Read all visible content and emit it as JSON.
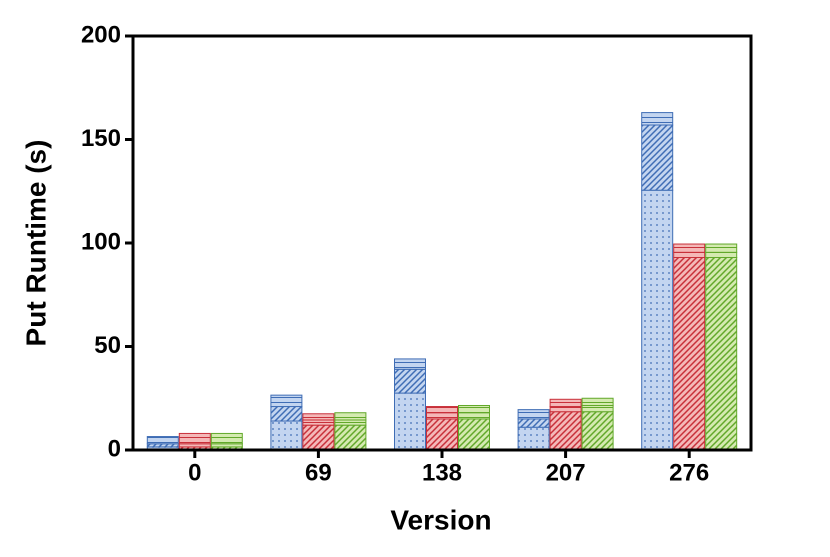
{
  "chart_data": {
    "type": "grouped-stacked-bar",
    "x_label": "Version",
    "y_label": "Put Runtime (s)",
    "categories": [
      "0",
      "69",
      "138",
      "207",
      "276"
    ],
    "ylim": [
      0,
      200
    ],
    "yticks": [
      0,
      50,
      100,
      150,
      200
    ],
    "groups": [
      {
        "color": "#c3d5f0",
        "edge_color": "#3f6db5",
        "segments": [
          {
            "pattern": "dots",
            "values": [
              1.5,
              14,
              27.5,
              11,
              125.5
            ]
          },
          {
            "pattern": "diagonal",
            "values": [
              1.5,
              7,
              11.5,
              4,
              31.5
            ]
          },
          {
            "pattern": "horizontal",
            "values": [
              3.5,
              5.5,
              5,
              4.5,
              6
            ]
          }
        ]
      },
      {
        "color": "#f4b8b8",
        "edge_color": "#c8303a",
        "segments": [
          {
            "pattern": "diagonal",
            "values": [
              1.5,
              12,
              15,
              18.5,
              93
            ]
          },
          {
            "pattern": "horizontal",
            "values": [
              1.5,
              2.5,
              3,
              2.5,
              2.5
            ]
          },
          {
            "pattern": "horizontal",
            "values": [
              5,
              3,
              3,
              3.5,
              4
            ]
          }
        ]
      },
      {
        "color": "#d4eab0",
        "edge_color": "#62a82a",
        "segments": [
          {
            "pattern": "diagonal",
            "values": [
              1.5,
              12,
              15,
              18.5,
              93
            ]
          },
          {
            "pattern": "horizontal",
            "values": [
              1.5,
              2.5,
              3,
              3,
              2.5
            ]
          },
          {
            "pattern": "horizontal",
            "values": [
              5,
              3.5,
              3.5,
              3.5,
              4
            ]
          }
        ]
      }
    ]
  }
}
